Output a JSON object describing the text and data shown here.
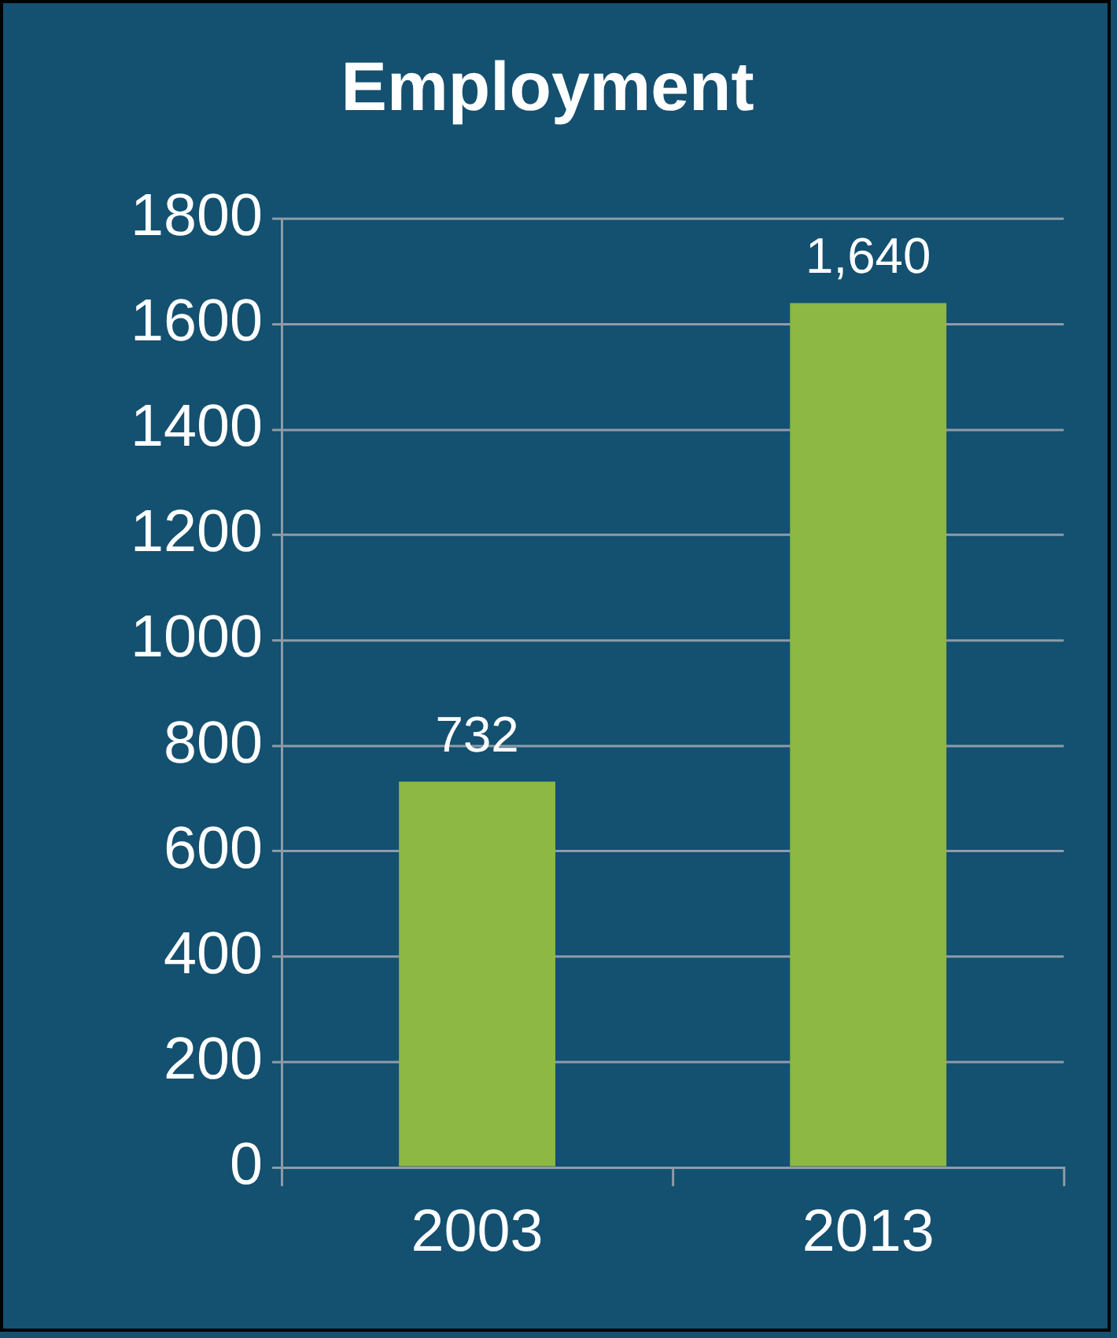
{
  "chart_data": {
    "type": "bar",
    "title": "Employment",
    "categories": [
      "2003",
      "2013"
    ],
    "values": [
      732,
      1640
    ],
    "value_labels": [
      "732",
      "1,640"
    ],
    "color": "#8db843",
    "ylim": [
      0,
      1800
    ],
    "yticks": [
      0,
      200,
      400,
      600,
      800,
      1000,
      1200,
      1400,
      1600,
      1800
    ],
    "grid": "y",
    "legend": false
  }
}
